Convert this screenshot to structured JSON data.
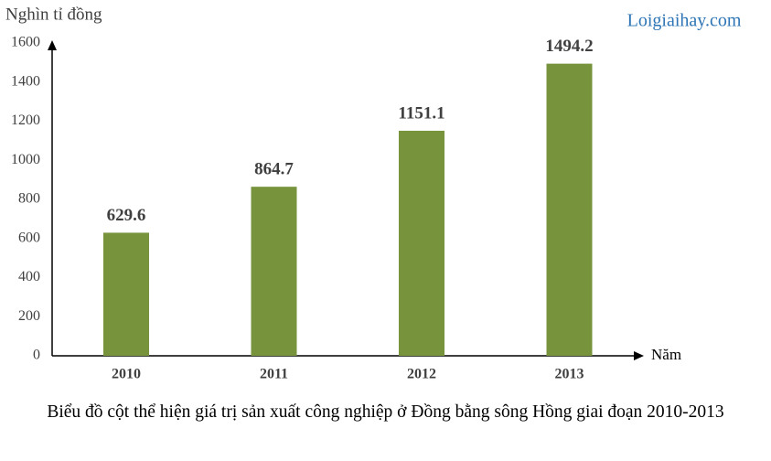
{
  "chart_data": {
    "type": "bar",
    "title": "Biểu đồ cột thể hiện giá trị sản xuất công nghiệp ở Đồng bằng sông Hồng giai đoạn 2010-2013",
    "y_label": "Nghìn tỉ đồng",
    "x_label": "Năm",
    "watermark": "Loigiaihay.com",
    "categories": [
      "2010",
      "2011",
      "2012",
      "2013"
    ],
    "values": [
      629.6,
      864.7,
      1151.1,
      1494.2
    ],
    "color": "#77933c",
    "ylim": [
      0,
      1600
    ],
    "yticks": [
      0,
      200,
      400,
      600,
      800,
      1000,
      1200,
      1400,
      1600
    ],
    "grid": false
  }
}
